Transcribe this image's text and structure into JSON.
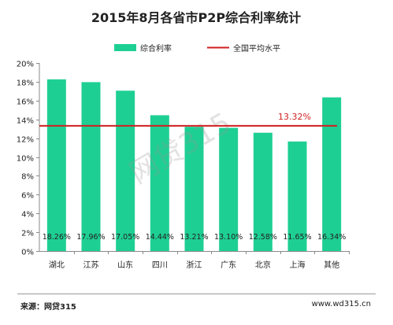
{
  "chart_data": {
    "type": "bar",
    "title": "2015年8月各省市P2P综合利率统计",
    "categories": [
      "湖北",
      "江苏",
      "山东",
      "四川",
      "浙江",
      "广东",
      "北京",
      "上海",
      "其他"
    ],
    "series": [
      {
        "name": "综合利率",
        "values": [
          18.26,
          17.96,
          17.05,
          14.44,
          13.21,
          13.1,
          12.58,
          11.65,
          16.34
        ],
        "data_labels": [
          "18.26%",
          "17.96%",
          "17.05%",
          "14.44%",
          "13.21%",
          "13.10%",
          "12.58%",
          "11.65%",
          "16.34%"
        ],
        "color": "#1ecf94"
      }
    ],
    "reference_line": {
      "name": "全国平均水平",
      "value": 13.32,
      "label": "13.32%",
      "color": "#d11f1f"
    },
    "ylim": [
      0,
      20
    ],
    "yticks": [
      0,
      2,
      4,
      6,
      8,
      10,
      12,
      14,
      16,
      18,
      20
    ],
    "ytick_labels": [
      "0%",
      "2%",
      "4%",
      "6%",
      "8%",
      "10%",
      "12%",
      "14%",
      "16%",
      "18%",
      "20%"
    ],
    "xlabel": "",
    "ylabel": "",
    "grid": false,
    "legend_position": "top"
  },
  "watermark": "网贷315",
  "footer": {
    "source": "来源：网贷315",
    "website": "www.wd315.cn"
  }
}
